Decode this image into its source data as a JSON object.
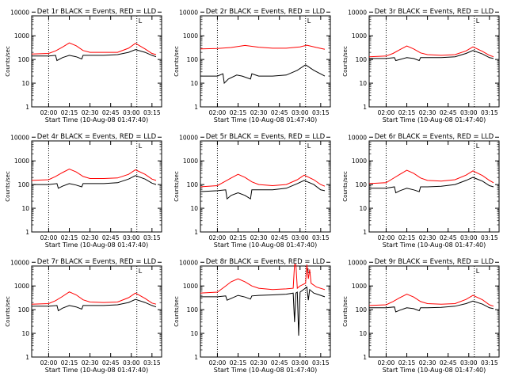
{
  "colors": {
    "events": "#000000",
    "lld": "#ff0000",
    "axis": "#000000",
    "background": "#ffffff"
  },
  "shared": {
    "xlabel": "Start Time (10-Aug-08 01:47:40)",
    "ylabel": "Counts/sec",
    "x_ticks": [
      "02:00",
      "02:15",
      "02:30",
      "02:45",
      "03:00",
      "03:15"
    ],
    "y_ticks": [
      "1",
      "10",
      "100",
      "1000",
      "10000"
    ],
    "ylim": [
      1,
      15000
    ],
    "y_scale": "log",
    "marker_label": "L"
  },
  "chart_data": [
    {
      "type": "line",
      "title": "Det 1r BLACK = Events, RED = LLD",
      "series": [
        {
          "color": "#000000",
          "x": [
            "01:47:40",
            "02:00",
            "02:05",
            "02:06",
            "02:10",
            "02:15",
            "02:20",
            "02:24",
            "02:25",
            "02:30",
            "02:40",
            "02:50",
            "02:58",
            "03:03",
            "03:10",
            "03:15",
            "03:18"
          ],
          "y": [
            140,
            140,
            150,
            90,
            120,
            150,
            130,
            105,
            150,
            150,
            150,
            160,
            200,
            260,
            200,
            150,
            130
          ]
        },
        {
          "color": "#ff0000",
          "x": [
            "01:47:40",
            "02:00",
            "02:05",
            "02:10",
            "02:15",
            "02:20",
            "02:25",
            "02:30",
            "02:40",
            "02:50",
            "02:58",
            "03:03",
            "03:10",
            "03:15",
            "03:18"
          ],
          "y": [
            170,
            180,
            230,
            330,
            500,
            380,
            240,
            200,
            200,
            200,
            300,
            480,
            280,
            180,
            160
          ]
        }
      ],
      "vlines": [
        "02:00",
        "03:04"
      ]
    },
    {
      "type": "line",
      "title": "Det 2r BLACK = Events, RED = LLD",
      "series": [
        {
          "color": "#000000",
          "x": [
            "01:47:40",
            "02:00",
            "02:04",
            "02:05",
            "02:08",
            "02:14",
            "02:18",
            "02:24",
            "02:25",
            "02:30",
            "02:40",
            "02:50",
            "02:58",
            "03:04",
            "03:10",
            "03:18"
          ],
          "y": [
            20,
            20,
            25,
            10,
            15,
            22,
            20,
            15,
            25,
            20,
            20,
            22,
            35,
            60,
            35,
            20
          ]
        },
        {
          "color": "#ff0000",
          "x": [
            "01:47:40",
            "02:00",
            "02:10",
            "02:20",
            "02:30",
            "02:40",
            "02:50",
            "03:00",
            "03:05",
            "03:12",
            "03:18"
          ],
          "y": [
            280,
            290,
            320,
            390,
            330,
            300,
            300,
            340,
            400,
            320,
            270
          ]
        }
      ],
      "vlines": [
        "02:00",
        "03:04"
      ]
    },
    {
      "type": "line",
      "title": "Det 3r BLACK = Events, RED = LLD",
      "series": [
        {
          "color": "#000000",
          "x": [
            "01:47:40",
            "02:00",
            "02:06",
            "02:07",
            "02:10",
            "02:15",
            "02:20",
            "02:24",
            "02:25",
            "02:30",
            "02:40",
            "02:50",
            "02:58",
            "03:03",
            "03:10",
            "03:15",
            "03:18"
          ],
          "y": [
            110,
            110,
            120,
            90,
            100,
            120,
            110,
            90,
            120,
            120,
            120,
            130,
            180,
            240,
            170,
            120,
            110
          ]
        },
        {
          "color": "#ff0000",
          "x": [
            "01:47:40",
            "02:00",
            "02:05",
            "02:10",
            "02:15",
            "02:20",
            "02:25",
            "02:30",
            "02:40",
            "02:50",
            "02:58",
            "03:03",
            "03:10",
            "03:15",
            "03:18"
          ],
          "y": [
            130,
            140,
            180,
            260,
            370,
            280,
            190,
            160,
            150,
            160,
            230,
            340,
            220,
            150,
            130
          ]
        }
      ],
      "vlines": [
        "02:00",
        "03:04"
      ]
    },
    {
      "type": "line",
      "title": "Det 4r BLACK = Events, RED = LLD",
      "series": [
        {
          "color": "#000000",
          "x": [
            "01:47:40",
            "02:00",
            "02:06",
            "02:07",
            "02:10",
            "02:15",
            "02:20",
            "02:24",
            "02:25",
            "02:30",
            "02:40",
            "02:50",
            "02:58",
            "03:03",
            "03:10",
            "03:15",
            "03:18"
          ],
          "y": [
            100,
            100,
            110,
            70,
            85,
            110,
            95,
            80,
            110,
            110,
            110,
            120,
            170,
            240,
            170,
            115,
            100
          ]
        },
        {
          "color": "#ff0000",
          "x": [
            "01:47:40",
            "02:00",
            "02:05",
            "02:10",
            "02:15",
            "02:20",
            "02:25",
            "02:30",
            "02:40",
            "02:50",
            "02:58",
            "03:03",
            "03:10",
            "03:15",
            "03:18"
          ],
          "y": [
            150,
            160,
            220,
            320,
            450,
            340,
            220,
            180,
            180,
            190,
            270,
            420,
            270,
            170,
            150
          ]
        }
      ],
      "vlines": [
        "02:00",
        "03:04"
      ]
    },
    {
      "type": "line",
      "title": "Det 5r BLACK = Events, RED = LLD",
      "series": [
        {
          "color": "#000000",
          "x": [
            "01:47:40",
            "02:00",
            "02:06",
            "02:07",
            "02:10",
            "02:15",
            "02:20",
            "02:24",
            "02:25",
            "02:30",
            "02:40",
            "02:50",
            "02:58",
            "03:03",
            "03:10",
            "03:15",
            "03:18"
          ],
          "y": [
            50,
            55,
            60,
            25,
            35,
            45,
            35,
            25,
            60,
            60,
            60,
            70,
            110,
            150,
            100,
            60,
            55
          ]
        },
        {
          "color": "#ff0000",
          "x": [
            "01:47:40",
            "02:00",
            "02:05",
            "02:10",
            "02:15",
            "02:20",
            "02:25",
            "02:30",
            "02:40",
            "02:50",
            "02:58",
            "03:03",
            "03:10",
            "03:15",
            "03:18"
          ],
          "y": [
            80,
            90,
            130,
            190,
            270,
            200,
            130,
            100,
            90,
            100,
            160,
            250,
            160,
            100,
            85
          ]
        }
      ],
      "vlines": [
        "02:00",
        "03:04"
      ]
    },
    {
      "type": "line",
      "title": "Det 6r BLACK = Events, RED = LLD",
      "series": [
        {
          "color": "#000000",
          "x": [
            "01:47:40",
            "02:00",
            "02:06",
            "02:07",
            "02:10",
            "02:15",
            "02:20",
            "02:24",
            "02:25",
            "02:30",
            "02:40",
            "02:50",
            "02:58",
            "03:03",
            "03:10",
            "03:15",
            "03:18"
          ],
          "y": [
            70,
            70,
            80,
            45,
            55,
            70,
            60,
            50,
            80,
            80,
            85,
            100,
            150,
            200,
            140,
            90,
            80
          ]
        },
        {
          "color": "#ff0000",
          "x": [
            "01:47:40",
            "02:00",
            "02:05",
            "02:10",
            "02:15",
            "02:20",
            "02:25",
            "02:30",
            "02:40",
            "02:50",
            "02:58",
            "03:03",
            "03:10",
            "03:15",
            "03:18"
          ],
          "y": [
            110,
            120,
            180,
            270,
            400,
            300,
            190,
            150,
            140,
            160,
            250,
            380,
            240,
            150,
            120
          ]
        }
      ],
      "vlines": [
        "02:00",
        "03:04"
      ]
    },
    {
      "type": "line",
      "title": "Det 7r BLACK = Events, RED = LLD",
      "series": [
        {
          "color": "#000000",
          "x": [
            "01:47:40",
            "02:00",
            "02:06",
            "02:07",
            "02:10",
            "02:15",
            "02:20",
            "02:24",
            "02:25",
            "02:30",
            "02:40",
            "02:50",
            "02:58",
            "03:03",
            "03:10",
            "03:15",
            "03:18"
          ],
          "y": [
            140,
            140,
            150,
            90,
            115,
            150,
            130,
            105,
            150,
            150,
            150,
            160,
            200,
            270,
            200,
            150,
            130
          ]
        },
        {
          "color": "#ff0000",
          "x": [
            "01:47:40",
            "02:00",
            "02:05",
            "02:10",
            "02:15",
            "02:20",
            "02:25",
            "02:30",
            "02:40",
            "02:50",
            "02:58",
            "03:03",
            "03:10",
            "03:15",
            "03:18"
          ],
          "y": [
            170,
            180,
            240,
            360,
            560,
            420,
            260,
            210,
            200,
            210,
            320,
            500,
            300,
            190,
            170
          ]
        }
      ],
      "vlines": [
        "02:00",
        "03:04"
      ]
    },
    {
      "type": "line",
      "title": "Det 8r BLACK = Events, RED = LLD",
      "series": [
        {
          "color": "#000000",
          "x": [
            "01:47:40",
            "02:00",
            "02:06",
            "02:07",
            "02:10",
            "02:15",
            "02:20",
            "02:24",
            "02:25",
            "02:30",
            "02:40",
            "02:50",
            "02:55",
            "02:56",
            "02:57",
            "02:58",
            "02:59",
            "03:00",
            "03:05",
            "03:06",
            "03:07",
            "03:10",
            "03:15",
            "03:18"
          ],
          "y": [
            350,
            350,
            380,
            250,
            300,
            400,
            340,
            280,
            380,
            400,
            420,
            450,
            500,
            30,
            500,
            550,
            8,
            550,
            900,
            250,
            700,
            500,
            400,
            350
          ]
        },
        {
          "color": "#ff0000",
          "x": [
            "01:47:40",
            "02:00",
            "02:05",
            "02:10",
            "02:15",
            "02:20",
            "02:25",
            "02:30",
            "02:40",
            "02:50",
            "02:55",
            "02:56",
            "02:57",
            "02:58",
            "02:59",
            "03:00",
            "03:04",
            "03:05",
            "03:06",
            "03:07",
            "03:08",
            "03:12",
            "03:18"
          ],
          "y": [
            500,
            550,
            900,
            1500,
            2000,
            1500,
            1000,
            800,
            700,
            750,
            800,
            8000,
            8000,
            800,
            900,
            1000,
            1300,
            8000,
            2000,
            5000,
            1300,
            900,
            700
          ]
        }
      ],
      "vlines": [
        "02:00",
        "03:04"
      ]
    },
    {
      "type": "line",
      "title": "Det 9r BLACK = Events, RED = LLD",
      "series": [
        {
          "color": "#000000",
          "x": [
            "01:47:40",
            "02:00",
            "02:06",
            "02:07",
            "02:10",
            "02:15",
            "02:20",
            "02:24",
            "02:25",
            "02:30",
            "02:40",
            "02:50",
            "02:58",
            "03:03",
            "03:10",
            "03:15",
            "03:18"
          ],
          "y": [
            120,
            120,
            130,
            80,
            95,
            120,
            110,
            90,
            120,
            120,
            125,
            140,
            180,
            230,
            170,
            120,
            110
          ]
        },
        {
          "color": "#ff0000",
          "x": [
            "01:47:40",
            "02:00",
            "02:05",
            "02:10",
            "02:15",
            "02:20",
            "02:25",
            "02:30",
            "02:40",
            "02:50",
            "02:58",
            "03:03",
            "03:10",
            "03:15",
            "03:18"
          ],
          "y": [
            150,
            160,
            220,
            320,
            450,
            340,
            220,
            180,
            170,
            180,
            270,
            400,
            260,
            160,
            140
          ]
        }
      ],
      "vlines": [
        "02:00",
        "03:04"
      ]
    }
  ]
}
